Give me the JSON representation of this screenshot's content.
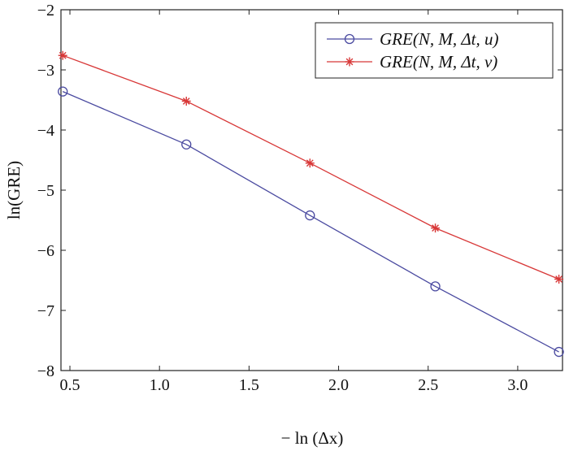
{
  "chart_data": {
    "type": "line",
    "xlabel": "− ln (Δx)",
    "ylabel": "ln(GRE)",
    "xlim": [
      0.45,
      3.25
    ],
    "ylim": [
      -8,
      -2
    ],
    "xticks": [
      "0.5",
      "1.0",
      "1.5",
      "2.0",
      "2.5",
      "3.0"
    ],
    "yticks": [
      "−2",
      "−3",
      "−4",
      "−5",
      "−6",
      "−7",
      "−8"
    ],
    "x": [
      0.46,
      1.15,
      1.84,
      2.54,
      3.23
    ],
    "series": [
      {
        "name": "GRE(N, M, Δt, u)",
        "marker": "circle",
        "color": "#4a4aa0",
        "values": [
          -3.36,
          -4.24,
          -5.42,
          -6.6,
          -7.69
        ]
      },
      {
        "name": "GRE(N, M, Δt, v)",
        "marker": "star",
        "color": "#d83838",
        "values": [
          -2.76,
          -3.52,
          -4.55,
          -5.63,
          -6.48
        ]
      }
    ],
    "legend": "top-right",
    "grid": false
  }
}
